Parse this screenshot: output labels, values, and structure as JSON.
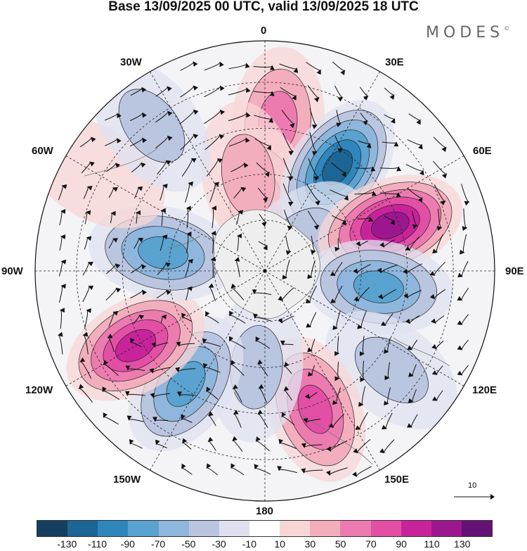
{
  "title": "Base 13/09/2025 00 UTC, valid 13/09/2025 18 UTC",
  "brand": {
    "name": "MODES",
    "mark": "©"
  },
  "labels": {
    "lon_0": "0",
    "lon_30e": "30E",
    "lon_60e": "60E",
    "lon_90e": "90E",
    "lon_120e": "120E",
    "lon_150e": "150E",
    "lon_180": "180",
    "lon_150w": "150W",
    "lon_120w": "120W",
    "lon_90w": "90W",
    "lon_60w": "60W",
    "lon_30w": "30W"
  },
  "reference_vector": {
    "value": "10"
  },
  "colorbar": {
    "colors": [
      "#153f5e",
      "#1c6595",
      "#2f86bd",
      "#5aa3d0",
      "#8fb6dc",
      "#bac5e0",
      "#dfe1f0",
      "#ffffff",
      "#f8d6d6",
      "#f3aebe",
      "#ec7bb0",
      "#e24fa5",
      "#c8239b",
      "#9c178f",
      "#641274"
    ],
    "ticks": [
      "-130",
      "-110",
      "-90",
      "-70",
      "-50",
      "-30",
      "-10",
      "10",
      "30",
      "50",
      "70",
      "90",
      "110",
      "130"
    ]
  },
  "anomalies": [
    {
      "lon": 5,
      "r": 0.65,
      "value": 55
    },
    {
      "lon": -2,
      "r": 0.3,
      "value": 50
    },
    {
      "lon": 350,
      "r": 0.42,
      "value": 45
    },
    {
      "lon": 35,
      "r": 0.55,
      "value": -120
    },
    {
      "lon": 50,
      "r": 0.2,
      "value": -30
    },
    {
      "lon": 70,
      "r": 0.58,
      "value": 125
    },
    {
      "lon": 98,
      "r": 0.5,
      "value": -85
    },
    {
      "lon": 128,
      "r": 0.7,
      "value": -45
    },
    {
      "lon": 160,
      "r": 0.64,
      "value": 80
    },
    {
      "lon": 185,
      "r": 0.42,
      "value": -35
    },
    {
      "lon": 215,
      "r": 0.6,
      "value": -85
    },
    {
      "lon": 240,
      "r": 0.65,
      "value": 105
    },
    {
      "lon": 280,
      "r": 0.45,
      "value": -70
    },
    {
      "lon": 300,
      "r": 0.85,
      "value": 25
    },
    {
      "lon": 322,
      "r": 0.8,
      "value": -30
    }
  ]
}
